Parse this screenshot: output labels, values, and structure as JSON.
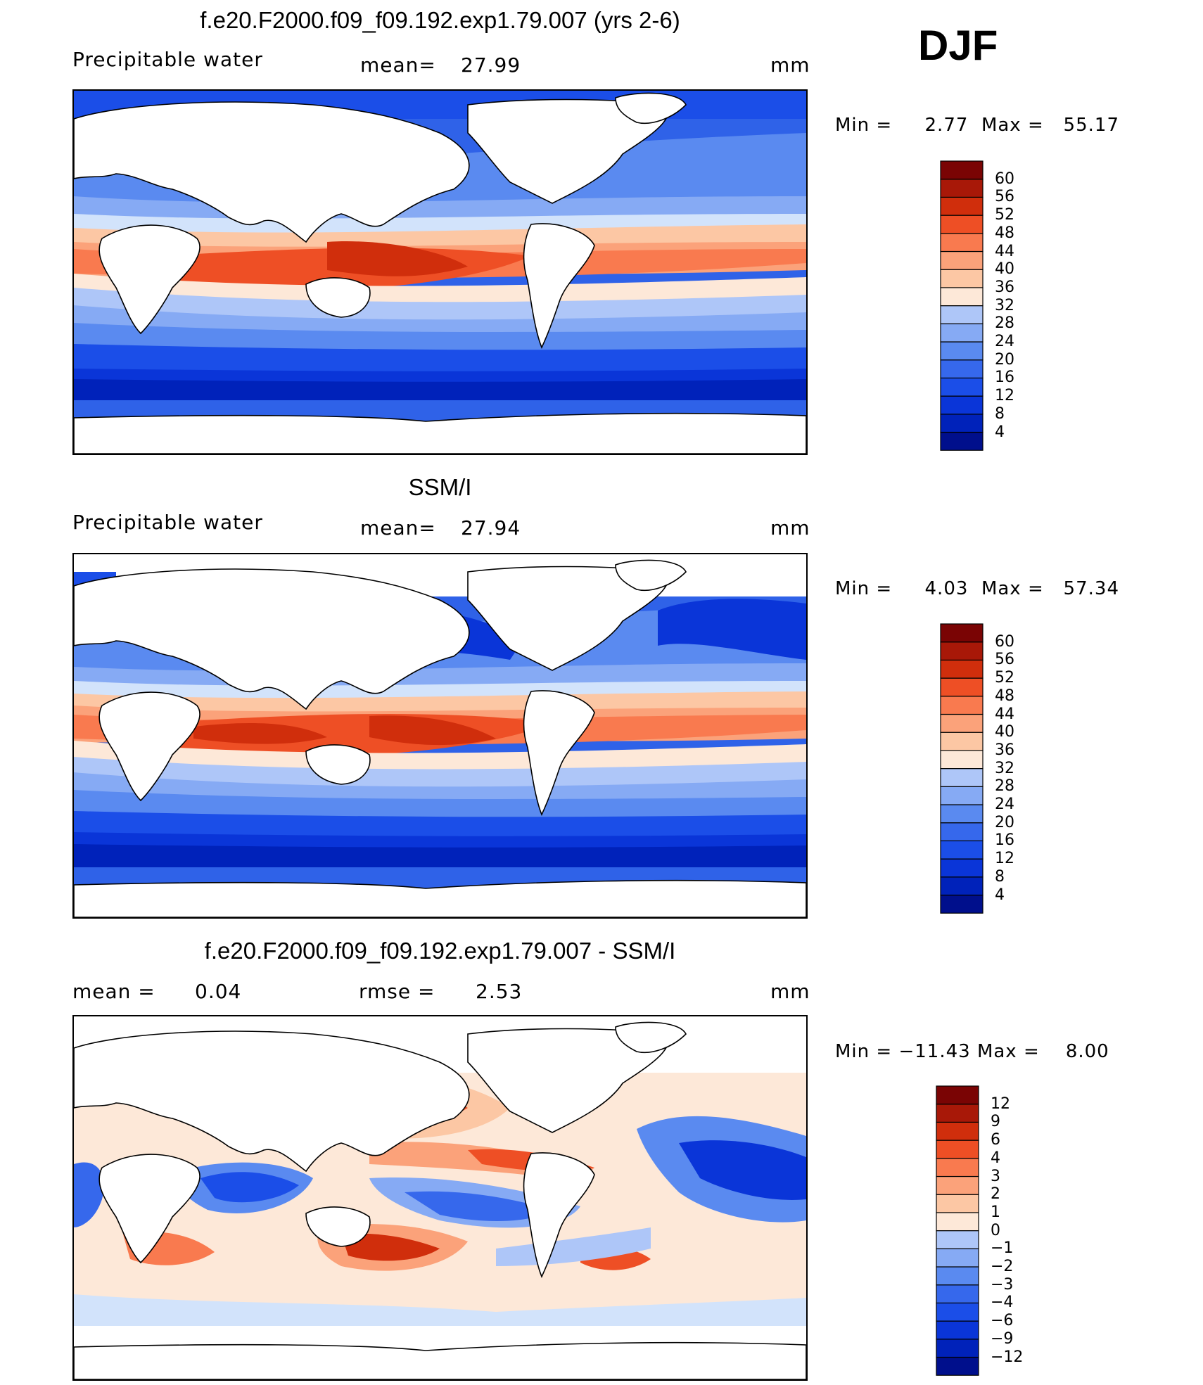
{
  "season": "DJF",
  "colors": {
    "continent_fill": "#ffffff",
    "coast_line": "#000000",
    "frame": "#000000"
  },
  "palette_full": [
    "#000f8c",
    "#0022ba",
    "#0a35d8",
    "#1b4ee8",
    "#3668ec",
    "#5a8af0",
    "#86aaf4",
    "#aec6f8",
    "#d2e3fb",
    "#fde8d8",
    "#fcc7a4",
    "#fba27a",
    "#f97a4f",
    "#ee4f25",
    "#d02e0c",
    "#a81808",
    "#7a0404"
  ],
  "chart_data": [
    {
      "type": "heatmap",
      "map_type": "global",
      "title": "f.e20.F2000.f09_f09.192.exp1.79.007 (yrs 2-6)",
      "left_label": "Precipitable water",
      "center_label": "mean=",
      "center_value": "27.99",
      "units": "mm",
      "min_label": "Min =",
      "min_value": "2.77",
      "max_label": "Max =",
      "max_value": "55.17",
      "levels": [
        "4",
        "8",
        "12",
        "16",
        "20",
        "24",
        "28",
        "32",
        "36",
        "40",
        "44",
        "48",
        "52",
        "56",
        "60"
      ]
    },
    {
      "type": "heatmap",
      "map_type": "global",
      "title": "SSM/I",
      "left_label": "Precipitable water",
      "center_label": "mean=",
      "center_value": "27.94",
      "units": "mm",
      "min_label": "Min =",
      "min_value": "4.03",
      "max_label": "Max =",
      "max_value": "57.34",
      "levels": [
        "4",
        "8",
        "12",
        "16",
        "20",
        "24",
        "28",
        "32",
        "36",
        "40",
        "44",
        "48",
        "52",
        "56",
        "60"
      ]
    },
    {
      "type": "heatmap",
      "map_type": "difference",
      "title": "f.e20.F2000.f09_f09.192.exp1.79.007 - SSM/I",
      "left_label": "mean =",
      "left_value": "0.04",
      "center_label": "rmse =",
      "center_value": "2.53",
      "units": "mm",
      "min_label": "Min =",
      "min_value": "−11.43",
      "max_label": "Max =",
      "max_value": "8.00",
      "levels": [
        "−12",
        "−9",
        "−6",
        "−4",
        "−3",
        "−2",
        "−1",
        "0",
        "1",
        "2",
        "3",
        "4",
        "6",
        "9",
        "12"
      ]
    }
  ]
}
